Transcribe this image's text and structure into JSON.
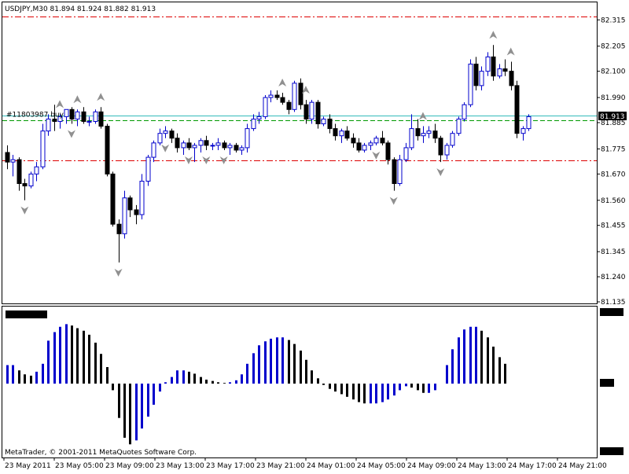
{
  "window": {
    "symbol_header": "USDJPY,M30  81.894 81.924 81.882 81.913",
    "copyright": "MetaTrader, © 2001-2011 MetaQuotes Software Corp."
  },
  "chart_data": [
    {
      "type": "candlestick",
      "symbol": "USDJPY",
      "timeframe": "M30",
      "header_values": {
        "open": 81.894,
        "high": 81.924,
        "low": 81.882,
        "close": 81.913
      },
      "ylim": [
        81.135,
        82.385
      ],
      "y_ticks": [
        "82.315",
        "82.205",
        "82.100",
        "81.990",
        "81.885",
        "81.775",
        "81.670",
        "81.560",
        "81.455",
        "81.345",
        "81.240",
        "81.135"
      ],
      "current_price_label": "81.913",
      "order_label": "#11803987 buy",
      "levels": [
        {
          "name": "upper-level",
          "price": 82.33,
          "color": "#dd0000",
          "style": "dash-dot"
        },
        {
          "name": "order-open-line",
          "price": 81.913,
          "color": "#33bbbb",
          "style": "solid"
        },
        {
          "name": "order-target-line",
          "price": 81.895,
          "color": "#009900",
          "style": "dashed"
        },
        {
          "name": "lower-level",
          "price": 81.728,
          "color": "#dd0000",
          "style": "dash-dot"
        }
      ],
      "colors": {
        "bull": "#0000cc",
        "bear": "#000000",
        "fractal": "#909090"
      },
      "x_tick_labels": [
        "23 May 2011",
        "23 May 05:00",
        "23 May 09:00",
        "23 May 13:00",
        "23 May 17:00",
        "23 May 21:00",
        "24 May 01:00",
        "24 May 05:00",
        "24 May 09:00",
        "24 May 13:00",
        "24 May 17:00",
        "24 May 21:00"
      ],
      "candles": [
        {
          "o": 81.76,
          "h": 81.79,
          "l": 81.69,
          "c": 81.72
        },
        {
          "o": 81.72,
          "h": 81.75,
          "l": 81.66,
          "c": 81.73
        },
        {
          "o": 81.73,
          "h": 81.74,
          "l": 81.6,
          "c": 81.63
        },
        {
          "o": 81.63,
          "h": 81.65,
          "l": 81.56,
          "c": 81.62
        },
        {
          "o": 81.62,
          "h": 81.68,
          "l": 81.61,
          "c": 81.67
        },
        {
          "o": 81.67,
          "h": 81.72,
          "l": 81.64,
          "c": 81.7
        },
        {
          "o": 81.7,
          "h": 81.88,
          "l": 81.69,
          "c": 81.85
        },
        {
          "o": 81.85,
          "h": 81.92,
          "l": 81.83,
          "c": 81.9
        },
        {
          "o": 81.9,
          "h": 81.96,
          "l": 81.85,
          "c": 81.89
        },
        {
          "o": 81.89,
          "h": 81.92,
          "l": 81.86,
          "c": 81.91
        },
        {
          "o": 81.91,
          "h": 81.94,
          "l": 81.88,
          "c": 81.94
        },
        {
          "o": 81.94,
          "h": 81.95,
          "l": 81.88,
          "c": 81.9
        },
        {
          "o": 81.9,
          "h": 81.94,
          "l": 81.87,
          "c": 81.93
        },
        {
          "o": 81.93,
          "h": 81.95,
          "l": 81.88,
          "c": 81.89
        },
        {
          "o": 81.89,
          "h": 81.91,
          "l": 81.87,
          "c": 81.89
        },
        {
          "o": 81.89,
          "h": 81.94,
          "l": 81.88,
          "c": 81.93
        },
        {
          "o": 81.93,
          "h": 81.95,
          "l": 81.86,
          "c": 81.87
        },
        {
          "o": 81.87,
          "h": 81.88,
          "l": 81.66,
          "c": 81.67
        },
        {
          "o": 81.67,
          "h": 81.68,
          "l": 81.45,
          "c": 81.46
        },
        {
          "o": 81.46,
          "h": 81.48,
          "l": 81.3,
          "c": 81.42
        },
        {
          "o": 81.42,
          "h": 81.6,
          "l": 81.4,
          "c": 81.57
        },
        {
          "o": 81.57,
          "h": 81.58,
          "l": 81.49,
          "c": 81.52
        },
        {
          "o": 81.52,
          "h": 81.54,
          "l": 81.46,
          "c": 81.5
        },
        {
          "o": 81.5,
          "h": 81.67,
          "l": 81.48,
          "c": 81.64
        },
        {
          "o": 81.64,
          "h": 81.75,
          "l": 81.62,
          "c": 81.74
        },
        {
          "o": 81.74,
          "h": 81.81,
          "l": 81.72,
          "c": 81.8
        },
        {
          "o": 81.8,
          "h": 81.86,
          "l": 81.79,
          "c": 81.84
        },
        {
          "o": 81.84,
          "h": 81.87,
          "l": 81.82,
          "c": 81.85
        },
        {
          "o": 81.85,
          "h": 81.86,
          "l": 81.8,
          "c": 81.82
        },
        {
          "o": 81.82,
          "h": 81.84,
          "l": 81.76,
          "c": 81.78
        },
        {
          "o": 81.78,
          "h": 81.81,
          "l": 81.75,
          "c": 81.8
        },
        {
          "o": 81.8,
          "h": 81.82,
          "l": 81.77,
          "c": 81.78
        },
        {
          "o": 81.78,
          "h": 81.8,
          "l": 81.72,
          "c": 81.79
        },
        {
          "o": 81.79,
          "h": 81.82,
          "l": 81.76,
          "c": 81.81
        },
        {
          "o": 81.81,
          "h": 81.83,
          "l": 81.77,
          "c": 81.79
        },
        {
          "o": 81.79,
          "h": 81.8,
          "l": 81.77,
          "c": 81.79
        },
        {
          "o": 81.79,
          "h": 81.82,
          "l": 81.77,
          "c": 81.8
        },
        {
          "o": 81.8,
          "h": 81.81,
          "l": 81.77,
          "c": 81.78
        },
        {
          "o": 81.78,
          "h": 81.8,
          "l": 81.75,
          "c": 81.79
        },
        {
          "o": 81.79,
          "h": 81.8,
          "l": 81.76,
          "c": 81.77
        },
        {
          "o": 81.77,
          "h": 81.79,
          "l": 81.75,
          "c": 81.78
        },
        {
          "o": 81.78,
          "h": 81.88,
          "l": 81.76,
          "c": 81.86
        },
        {
          "o": 81.86,
          "h": 81.92,
          "l": 81.85,
          "c": 81.9
        },
        {
          "o": 81.9,
          "h": 81.93,
          "l": 81.88,
          "c": 81.91
        },
        {
          "o": 81.91,
          "h": 82.0,
          "l": 81.9,
          "c": 81.99
        },
        {
          "o": 81.99,
          "h": 82.02,
          "l": 81.97,
          "c": 82.0
        },
        {
          "o": 82.0,
          "h": 82.02,
          "l": 81.98,
          "c": 81.99
        },
        {
          "o": 81.99,
          "h": 82.01,
          "l": 81.96,
          "c": 81.97
        },
        {
          "o": 81.97,
          "h": 81.98,
          "l": 81.92,
          "c": 81.94
        },
        {
          "o": 81.94,
          "h": 82.06,
          "l": 81.93,
          "c": 82.05
        },
        {
          "o": 82.05,
          "h": 82.07,
          "l": 81.94,
          "c": 81.96
        },
        {
          "o": 81.96,
          "h": 81.98,
          "l": 81.88,
          "c": 81.9
        },
        {
          "o": 81.9,
          "h": 81.98,
          "l": 81.88,
          "c": 81.97
        },
        {
          "o": 81.97,
          "h": 81.98,
          "l": 81.86,
          "c": 81.88
        },
        {
          "o": 81.88,
          "h": 81.91,
          "l": 81.87,
          "c": 81.9
        },
        {
          "o": 81.9,
          "h": 81.92,
          "l": 81.84,
          "c": 81.86
        },
        {
          "o": 81.86,
          "h": 81.88,
          "l": 81.81,
          "c": 81.83
        },
        {
          "o": 81.83,
          "h": 81.86,
          "l": 81.8,
          "c": 81.85
        },
        {
          "o": 81.85,
          "h": 81.87,
          "l": 81.81,
          "c": 81.82
        },
        {
          "o": 81.82,
          "h": 81.84,
          "l": 81.78,
          "c": 81.8
        },
        {
          "o": 81.8,
          "h": 81.82,
          "l": 81.76,
          "c": 81.77
        },
        {
          "o": 81.77,
          "h": 81.8,
          "l": 81.76,
          "c": 81.79
        },
        {
          "o": 81.79,
          "h": 81.81,
          "l": 81.77,
          "c": 81.8
        },
        {
          "o": 81.8,
          "h": 81.83,
          "l": 81.79,
          "c": 81.82
        },
        {
          "o": 81.82,
          "h": 81.85,
          "l": 81.79,
          "c": 81.8
        },
        {
          "o": 81.8,
          "h": 81.81,
          "l": 81.71,
          "c": 81.73
        },
        {
          "o": 81.73,
          "h": 81.74,
          "l": 81.6,
          "c": 81.63
        },
        {
          "o": 81.63,
          "h": 81.75,
          "l": 81.62,
          "c": 81.73
        },
        {
          "o": 81.73,
          "h": 81.8,
          "l": 81.72,
          "c": 81.78
        },
        {
          "o": 81.78,
          "h": 81.92,
          "l": 81.77,
          "c": 81.86
        },
        {
          "o": 81.86,
          "h": 81.9,
          "l": 81.81,
          "c": 81.83
        },
        {
          "o": 81.83,
          "h": 81.87,
          "l": 81.8,
          "c": 81.84
        },
        {
          "o": 81.84,
          "h": 81.87,
          "l": 81.82,
          "c": 81.85
        },
        {
          "o": 81.85,
          "h": 81.88,
          "l": 81.8,
          "c": 81.82
        },
        {
          "o": 81.82,
          "h": 81.83,
          "l": 81.72,
          "c": 81.75
        },
        {
          "o": 81.75,
          "h": 81.8,
          "l": 81.73,
          "c": 81.79
        },
        {
          "o": 81.79,
          "h": 81.85,
          "l": 81.78,
          "c": 81.84
        },
        {
          "o": 81.84,
          "h": 81.91,
          "l": 81.83,
          "c": 81.9
        },
        {
          "o": 81.9,
          "h": 81.97,
          "l": 81.89,
          "c": 81.96
        },
        {
          "o": 81.96,
          "h": 82.15,
          "l": 81.95,
          "c": 82.13
        },
        {
          "o": 82.13,
          "h": 82.16,
          "l": 82.02,
          "c": 82.04
        },
        {
          "o": 82.04,
          "h": 82.12,
          "l": 82.02,
          "c": 82.1
        },
        {
          "o": 82.1,
          "h": 82.18,
          "l": 82.08,
          "c": 82.16
        },
        {
          "o": 82.16,
          "h": 82.21,
          "l": 82.06,
          "c": 82.08
        },
        {
          "o": 82.08,
          "h": 82.13,
          "l": 82.07,
          "c": 82.11
        },
        {
          "o": 82.11,
          "h": 82.15,
          "l": 82.08,
          "c": 82.1
        },
        {
          "o": 82.1,
          "h": 82.14,
          "l": 82.02,
          "c": 82.04
        },
        {
          "o": 82.04,
          "h": 82.06,
          "l": 81.82,
          "c": 81.84
        },
        {
          "o": 81.84,
          "h": 81.87,
          "l": 81.81,
          "c": 81.86
        },
        {
          "o": 81.86,
          "h": 81.92,
          "l": 81.85,
          "c": 81.91
        }
      ],
      "fractals_up": [
        9,
        12,
        16,
        47,
        51,
        71,
        83,
        86
      ],
      "fractals_down": [
        3,
        11,
        19,
        27,
        31,
        34,
        37,
        63,
        66,
        74
      ]
    },
    {
      "type": "bar",
      "panel": "histogram-oscillator",
      "ylim": [
        -1.0,
        1.0
      ],
      "colors": {
        "rising": "#0000cc",
        "falling": "#000000"
      },
      "values": [
        0.28,
        0.28,
        0.2,
        0.14,
        0.12,
        0.18,
        0.3,
        0.65,
        0.78,
        0.86,
        0.9,
        0.88,
        0.84,
        0.8,
        0.74,
        0.62,
        0.45,
        0.25,
        -0.1,
        -0.52,
        -0.82,
        -0.92,
        -0.86,
        -0.68,
        -0.5,
        -0.32,
        -0.12,
        0.02,
        0.1,
        0.2,
        0.2,
        0.18,
        0.15,
        0.1,
        0.06,
        0.04,
        0.02,
        0.01,
        0.02,
        0.05,
        0.14,
        0.3,
        0.46,
        0.58,
        0.64,
        0.68,
        0.7,
        0.7,
        0.66,
        0.6,
        0.5,
        0.36,
        0.2,
        0.08,
        -0.02,
        -0.08,
        -0.12,
        -0.16,
        -0.2,
        -0.24,
        -0.28,
        -0.3,
        -0.3,
        -0.3,
        -0.28,
        -0.24,
        -0.18,
        -0.1,
        -0.04,
        -0.06,
        -0.1,
        -0.14,
        -0.14,
        -0.1,
        0.0,
        0.28,
        0.52,
        0.7,
        0.82,
        0.86,
        0.86,
        0.8,
        0.7,
        0.56,
        0.4,
        0.3
      ]
    }
  ]
}
